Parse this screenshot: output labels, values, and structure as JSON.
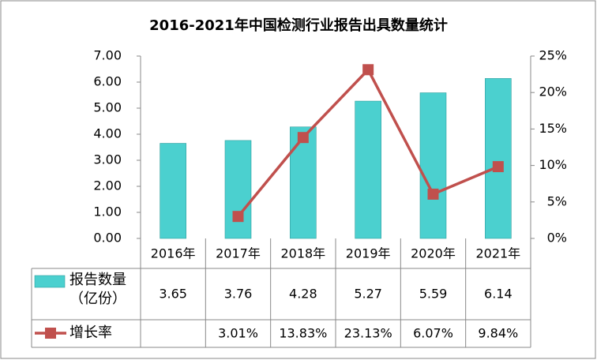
{
  "chart_data": {
    "type": "bar-line-table",
    "title": "2016-2021年中国检测行业报告出具数量统计",
    "categories": [
      "2016年",
      "2017年",
      "2018年",
      "2019年",
      "2020年",
      "2021年"
    ],
    "series": [
      {
        "name": "报告数量（亿份）",
        "type": "bar",
        "color": "#4bd0cf",
        "values": [
          3.65,
          3.76,
          4.28,
          5.27,
          5.59,
          6.14
        ]
      },
      {
        "name": "增长率",
        "type": "line",
        "axis": "y2",
        "color": "#c0504d",
        "values": [
          null,
          3.01,
          13.83,
          23.13,
          6.07,
          9.84
        ],
        "value_labels": [
          null,
          "3.01%",
          "13.83%",
          "23.13%",
          "6.07%",
          "9.84%"
        ]
      }
    ],
    "ylim": [
      0,
      7
    ],
    "yticks": [
      {
        "value": 0,
        "label": "0.00"
      },
      {
        "value": 1,
        "label": "1.00"
      },
      {
        "value": 2,
        "label": "2.00"
      },
      {
        "value": 3,
        "label": "3.00"
      },
      {
        "value": 4,
        "label": "4.00"
      },
      {
        "value": 5,
        "label": "5.00"
      },
      {
        "value": 6,
        "label": "6.00"
      },
      {
        "value": 7,
        "label": "7.00"
      }
    ],
    "y2lim": [
      0,
      25
    ],
    "y2ticks": [
      {
        "value": 0,
        "label": "0%"
      },
      {
        "value": 5,
        "label": "5%"
      },
      {
        "value": 10,
        "label": "10%"
      },
      {
        "value": 15,
        "label": "15%"
      },
      {
        "value": 20,
        "label": "20%"
      },
      {
        "value": 25,
        "label": "25%"
      }
    ],
    "grid": false
  }
}
